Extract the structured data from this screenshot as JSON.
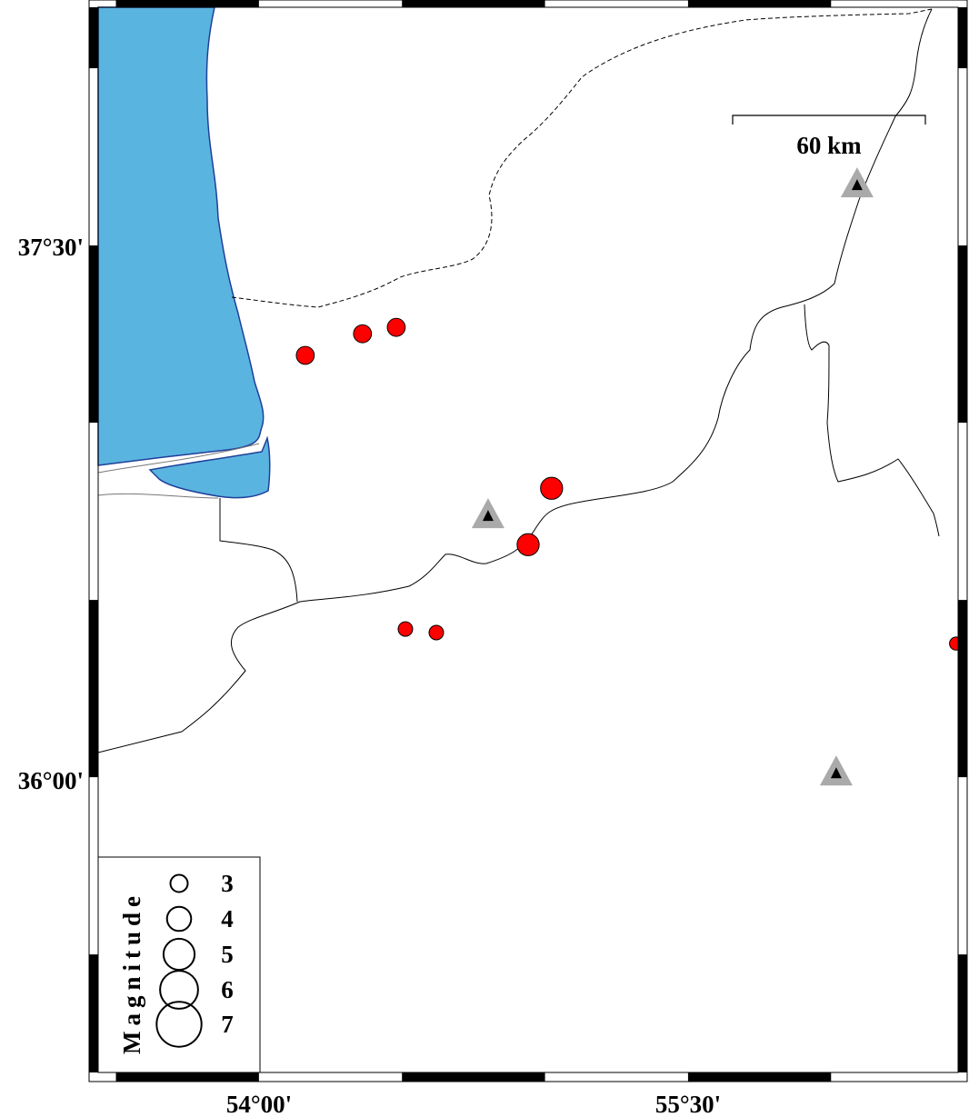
{
  "map": {
    "extent": {
      "lon_min": 53.438,
      "lon_max": 56.444,
      "lat_min": 35.167,
      "lat_max": 38.172
    },
    "frame_ticks_deg": 0.5,
    "lat_labels": [
      {
        "lat": 37.5,
        "text": "37°30'"
      },
      {
        "lat": 36.0,
        "text": "36°00'"
      }
    ],
    "lon_labels": [
      {
        "lon": 54.0,
        "text": "54°00'"
      },
      {
        "lon": 55.5,
        "text": "55°30'"
      }
    ],
    "colors": {
      "water": "#5ab4e0",
      "coast": "#1f3f99",
      "event": "#ff0000",
      "station_outer": "#aaaaaa",
      "station_inner": "#000000"
    },
    "scale_bar": {
      "label": "60 km"
    },
    "earthquakes": [
      {
        "lon": 54.162,
        "lat": 37.19,
        "mag": 3.1
      },
      {
        "lon": 54.362,
        "lat": 37.251,
        "mag": 3.1
      },
      {
        "lon": 54.48,
        "lat": 37.269,
        "mag": 3.1
      },
      {
        "lon": 55.023,
        "lat": 36.815,
        "mag": 3.7
      },
      {
        "lon": 54.941,
        "lat": 36.656,
        "mag": 3.7
      },
      {
        "lon": 54.512,
        "lat": 36.418,
        "mag": 2.6
      },
      {
        "lon": 54.62,
        "lat": 36.408,
        "mag": 2.6
      },
      {
        "lon": 56.437,
        "lat": 36.377,
        "mag": 2.4
      }
    ],
    "stations": [
      {
        "lon": 56.091,
        "lat": 37.669
      },
      {
        "lon": 54.801,
        "lat": 36.736
      },
      {
        "lon": 56.018,
        "lat": 36.01
      }
    ]
  },
  "legend": {
    "title": "Magnitude",
    "items": [
      {
        "mag": 3,
        "label": "3"
      },
      {
        "mag": 4,
        "label": "4"
      },
      {
        "mag": 5,
        "label": "5"
      },
      {
        "mag": 6,
        "label": "6"
      },
      {
        "mag": 7,
        "label": "7"
      }
    ]
  }
}
